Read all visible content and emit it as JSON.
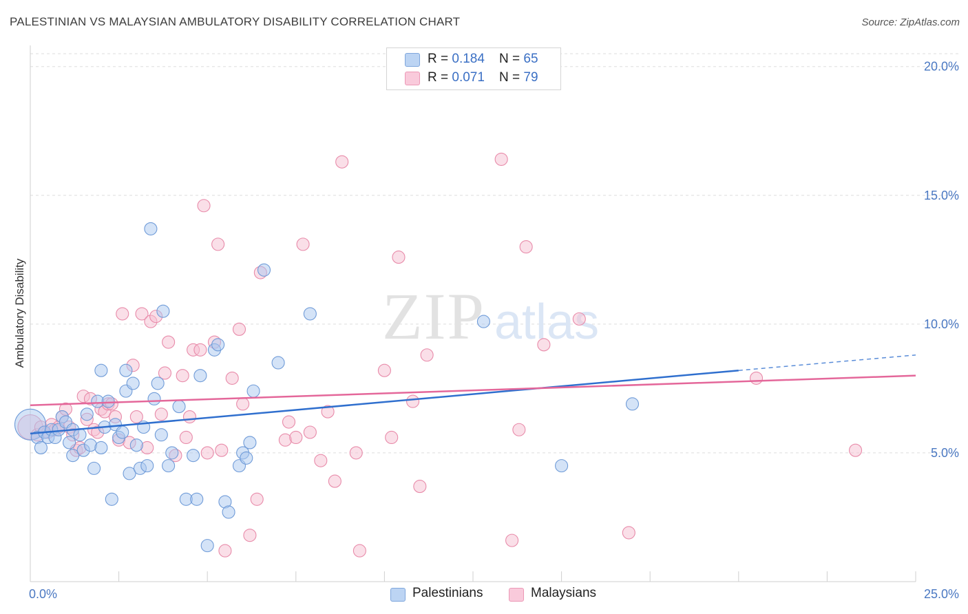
{
  "title": "PALESTINIAN VS MALAYSIAN AMBULATORY DISABILITY CORRELATION CHART",
  "source": "Source: ZipAtlas.com",
  "watermark": {
    "zip": "ZIP",
    "atlas": "atlas"
  },
  "legend": {
    "rows": [
      {
        "r_label": "R = ",
        "r_value": "0.184",
        "n_label": "N = ",
        "n_value": "65"
      },
      {
        "r_label": "R = ",
        "r_value": "0.071",
        "n_label": "N = ",
        "n_value": "79"
      }
    ]
  },
  "colors": {
    "blue_fill": "#a9c8f0",
    "blue_stroke": "#6f9bd8",
    "blue_line": "#2f6fce",
    "pink_fill": "#f6bfd1",
    "pink_stroke": "#e88aa9",
    "pink_line": "#e4679a",
    "grid": "#dddddd",
    "axis_text": "#4a78c2"
  },
  "chart_data": {
    "type": "scatter",
    "title": "PALESTINIAN VS MALAYSIAN AMBULATORY DISABILITY CORRELATION CHART",
    "xlabel": "",
    "ylabel": "Ambulatory Disability",
    "xlim": [
      0,
      25
    ],
    "ylim": [
      0,
      20.5
    ],
    "x_tick_labels": [
      {
        "value": 0,
        "label": "0.0%"
      },
      {
        "value": 25,
        "label": "25.0%"
      }
    ],
    "y_tick_labels": [
      {
        "value": 5,
        "label": "5.0%"
      },
      {
        "value": 10,
        "label": "10.0%"
      },
      {
        "value": 15,
        "label": "15.0%"
      },
      {
        "value": 20,
        "label": "20.0%"
      }
    ],
    "series": [
      {
        "name": "Palestinians",
        "r": 0.184,
        "n": 65,
        "trend": {
          "x0": 0,
          "y0": 5.75,
          "x1": 20,
          "y1": 8.2,
          "dashed_to_x": 25,
          "dashed_to_y": 8.8
        },
        "points": [
          [
            0.0,
            6.1,
            3
          ],
          [
            0.2,
            5.6,
            1
          ],
          [
            0.3,
            5.2,
            1
          ],
          [
            0.4,
            5.8,
            1
          ],
          [
            0.5,
            5.6,
            1
          ],
          [
            0.6,
            5.9,
            1
          ],
          [
            0.7,
            5.6,
            1
          ],
          [
            0.8,
            5.9,
            1
          ],
          [
            0.9,
            6.4,
            1
          ],
          [
            1.0,
            6.2,
            1
          ],
          [
            1.1,
            5.4,
            1
          ],
          [
            1.2,
            5.9,
            1
          ],
          [
            1.2,
            4.9,
            1
          ],
          [
            1.4,
            5.7,
            1
          ],
          [
            1.5,
            5.1,
            1
          ],
          [
            1.6,
            6.5,
            1
          ],
          [
            1.7,
            5.3,
            1
          ],
          [
            1.8,
            4.4,
            1
          ],
          [
            1.9,
            7.0,
            1
          ],
          [
            2.0,
            5.2,
            1
          ],
          [
            2.0,
            8.2,
            1
          ],
          [
            2.1,
            6.0,
            1
          ],
          [
            2.2,
            7.0,
            1
          ],
          [
            2.3,
            3.2,
            1
          ],
          [
            2.4,
            6.1,
            1
          ],
          [
            2.5,
            5.6,
            1
          ],
          [
            2.6,
            5.8,
            1
          ],
          [
            2.7,
            8.2,
            1
          ],
          [
            2.7,
            7.4,
            1
          ],
          [
            2.8,
            4.2,
            1
          ],
          [
            2.9,
            7.7,
            1
          ],
          [
            3.0,
            5.3,
            1
          ],
          [
            3.1,
            4.4,
            1
          ],
          [
            3.2,
            6.0,
            1
          ],
          [
            3.3,
            4.5,
            1
          ],
          [
            3.4,
            13.7,
            1
          ],
          [
            3.5,
            7.1,
            1
          ],
          [
            3.6,
            7.7,
            1
          ],
          [
            3.7,
            5.7,
            1
          ],
          [
            3.75,
            10.5,
            1
          ],
          [
            3.9,
            4.5,
            1
          ],
          [
            4.0,
            5.0,
            1
          ],
          [
            4.2,
            6.8,
            1
          ],
          [
            4.4,
            3.2,
            1
          ],
          [
            4.6,
            4.9,
            1
          ],
          [
            4.7,
            3.2,
            1
          ],
          [
            4.8,
            8.0,
            1
          ],
          [
            5.0,
            1.4,
            1
          ],
          [
            5.2,
            9.0,
            1
          ],
          [
            5.3,
            9.2,
            1
          ],
          [
            5.5,
            3.1,
            1
          ],
          [
            5.6,
            2.7,
            1
          ],
          [
            5.9,
            4.5,
            1
          ],
          [
            6.0,
            5.0,
            1
          ],
          [
            6.1,
            4.8,
            1
          ],
          [
            6.2,
            5.4,
            1
          ],
          [
            6.3,
            7.4,
            1
          ],
          [
            6.6,
            12.1,
            1
          ],
          [
            7.0,
            8.5,
            1
          ],
          [
            7.9,
            10.4,
            1
          ],
          [
            12.8,
            10.1,
            1
          ],
          [
            15.0,
            4.5,
            1
          ],
          [
            17.0,
            6.9,
            1
          ]
        ]
      },
      {
        "name": "Malaysians",
        "r": 0.071,
        "n": 79,
        "trend": {
          "x0": 0,
          "y0": 6.85,
          "x1": 25,
          "y1": 8.0
        },
        "points": [
          [
            0.0,
            6.0,
            2
          ],
          [
            0.2,
            5.7,
            1
          ],
          [
            0.3,
            6.0,
            1
          ],
          [
            0.4,
            5.8,
            1
          ],
          [
            0.5,
            5.8,
            1
          ],
          [
            0.6,
            6.1,
            1
          ],
          [
            0.7,
            5.9,
            1
          ],
          [
            0.8,
            6.0,
            1
          ],
          [
            0.9,
            6.4,
            1
          ],
          [
            1.0,
            6.7,
            1
          ],
          [
            1.1,
            6.0,
            1
          ],
          [
            1.2,
            5.7,
            1
          ],
          [
            1.3,
            5.1,
            1
          ],
          [
            1.4,
            5.2,
            1
          ],
          [
            1.5,
            7.2,
            1
          ],
          [
            1.6,
            6.3,
            1
          ],
          [
            1.7,
            7.1,
            1
          ],
          [
            1.8,
            5.9,
            1
          ],
          [
            1.9,
            5.8,
            1
          ],
          [
            2.0,
            6.7,
            1
          ],
          [
            2.1,
            6.6,
            1
          ],
          [
            2.2,
            6.9,
            1
          ],
          [
            2.3,
            6.9,
            1
          ],
          [
            2.4,
            6.4,
            1
          ],
          [
            2.5,
            5.5,
            1
          ],
          [
            2.6,
            10.4,
            1
          ],
          [
            2.8,
            5.4,
            1
          ],
          [
            2.9,
            8.4,
            1
          ],
          [
            3.0,
            6.4,
            1
          ],
          [
            3.15,
            10.4,
            1
          ],
          [
            3.3,
            5.2,
            1
          ],
          [
            3.4,
            10.1,
            1
          ],
          [
            3.55,
            10.3,
            1
          ],
          [
            3.7,
            6.5,
            1
          ],
          [
            3.8,
            8.1,
            1
          ],
          [
            3.9,
            9.3,
            1
          ],
          [
            4.1,
            4.9,
            1
          ],
          [
            4.3,
            8.0,
            1
          ],
          [
            4.4,
            5.6,
            1
          ],
          [
            4.5,
            6.4,
            1
          ],
          [
            4.6,
            9.0,
            1
          ],
          [
            4.8,
            9.0,
            1
          ],
          [
            4.9,
            14.6,
            1
          ],
          [
            5.0,
            5.0,
            1
          ],
          [
            5.2,
            9.3,
            1
          ],
          [
            5.3,
            13.1,
            1
          ],
          [
            5.4,
            5.1,
            1
          ],
          [
            5.5,
            1.2,
            1
          ],
          [
            5.7,
            7.9,
            1
          ],
          [
            5.9,
            9.8,
            1
          ],
          [
            6.0,
            6.9,
            1
          ],
          [
            6.2,
            1.8,
            1
          ],
          [
            6.4,
            3.2,
            1
          ],
          [
            6.5,
            12.0,
            1
          ],
          [
            7.2,
            5.5,
            1
          ],
          [
            7.3,
            6.2,
            1
          ],
          [
            7.5,
            5.6,
            1
          ],
          [
            7.7,
            13.1,
            1
          ],
          [
            7.9,
            5.8,
            1
          ],
          [
            8.2,
            4.7,
            1
          ],
          [
            8.4,
            6.6,
            1
          ],
          [
            8.6,
            3.9,
            1
          ],
          [
            8.8,
            16.3,
            1
          ],
          [
            9.2,
            5.0,
            1
          ],
          [
            9.3,
            1.2,
            1
          ],
          [
            10.0,
            8.2,
            1
          ],
          [
            10.2,
            5.6,
            1
          ],
          [
            10.4,
            12.6,
            1
          ],
          [
            10.8,
            7.0,
            1
          ],
          [
            11.0,
            3.7,
            1
          ],
          [
            11.2,
            8.8,
            1
          ],
          [
            13.3,
            16.4,
            1
          ],
          [
            13.6,
            1.6,
            1
          ],
          [
            13.8,
            5.9,
            1
          ],
          [
            14.0,
            13.0,
            1
          ],
          [
            14.5,
            9.2,
            1
          ],
          [
            15.5,
            10.2,
            1
          ],
          [
            16.9,
            1.9,
            1
          ],
          [
            20.5,
            7.9,
            1
          ],
          [
            23.3,
            5.1,
            1
          ]
        ]
      }
    ]
  }
}
